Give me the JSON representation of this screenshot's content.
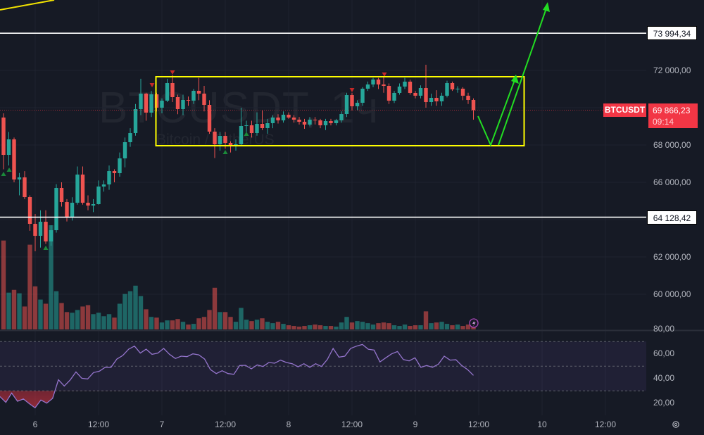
{
  "watermark": {
    "ticker": "BTCUSDT, 1ч",
    "name": "Bitcoin / TetherUS"
  },
  "price_label": {
    "symbol": "BTCUSDT",
    "price": "69 866,23",
    "countdown": "09:14"
  },
  "levels": [
    {
      "price": 73994.34,
      "label": "73 994,34"
    },
    {
      "price": 64128.42,
      "label": "64 128,42"
    }
  ],
  "colors": {
    "background": "#161a25",
    "up": "#26a69a",
    "down": "#ef5350",
    "rsi_line": "#9575cd",
    "drawing_box": "#ffff00",
    "drawing_arrows": "#22dd22",
    "level_lines": "#ffffff",
    "last_price": "#f23645"
  },
  "icons": {
    "alert": "lightning-icon",
    "settings": "gear-icon"
  },
  "chart_data": [
    {
      "type": "candlestick",
      "symbol": "BTCUSDT",
      "interval": "1h",
      "y_axis": {
        "ticks": [
          72000,
          68000,
          66000,
          62000,
          60000
        ],
        "tick_labels": [
          "72 000,00",
          "68 000,00",
          "66 000,00",
          "62 000,00",
          "60 000,00"
        ]
      },
      "x_axis": {
        "tick_labels": [
          "6",
          "12:00",
          "7",
          "12:00",
          "8",
          "12:00",
          "9",
          "12:00",
          "10",
          "12:00"
        ]
      },
      "grid": true,
      "ohlc": [
        [
          69472,
          69700,
          66700,
          67471
        ],
        [
          67471,
          68700,
          66900,
          68302
        ],
        [
          68302,
          68400,
          66000,
          66151
        ],
        [
          66151,
          66500,
          65300,
          66264
        ],
        [
          66264,
          66600,
          65100,
          65207
        ],
        [
          65207,
          65300,
          63400,
          63773
        ],
        [
          63773,
          64300,
          62300,
          63131
        ],
        [
          63131,
          64500,
          62500,
          63886
        ],
        [
          63886,
          64500,
          62700,
          62829
        ],
        [
          62829,
          63700,
          62600,
          63433
        ],
        [
          63433,
          65900,
          63300,
          65698
        ],
        [
          65698,
          66000,
          64700,
          64943
        ],
        [
          64943,
          65100,
          63900,
          64150
        ],
        [
          64150,
          65200,
          63950,
          64905
        ],
        [
          64905,
          66850,
          64800,
          66415
        ],
        [
          66415,
          66850,
          64800,
          64905
        ],
        [
          64905,
          65300,
          64500,
          64754
        ],
        [
          64754,
          65100,
          64400,
          64830
        ],
        [
          64830,
          66100,
          64800,
          65773
        ],
        [
          65773,
          66100,
          65500,
          65886
        ],
        [
          65886,
          66900,
          65600,
          66603
        ],
        [
          66603,
          66700,
          66000,
          66490
        ],
        [
          66490,
          67600,
          66300,
          67283
        ],
        [
          67283,
          68400,
          66800,
          68151
        ],
        [
          68151,
          68900,
          67900,
          68641
        ],
        [
          68641,
          70200,
          68500,
          69925
        ],
        [
          69925,
          71550,
          69600,
          70754
        ],
        [
          70754,
          70800,
          69300,
          69736
        ],
        [
          69736,
          70900,
          69500,
          70717
        ],
        [
          70717,
          70800,
          69800,
          70000
        ],
        [
          70000,
          70500,
          69700,
          70377
        ],
        [
          70377,
          71550,
          70300,
          71321
        ],
        [
          71321,
          71750,
          70300,
          70566
        ],
        [
          70566,
          70700,
          69650,
          69925
        ],
        [
          69925,
          70700,
          69600,
          70415
        ],
        [
          70415,
          70600,
          70100,
          70377
        ],
        [
          70377,
          71000,
          70200,
          70906
        ],
        [
          70906,
          71600,
          70400,
          70755
        ],
        [
          70755,
          71170,
          69800,
          70151
        ],
        [
          70151,
          70400,
          68600,
          68717
        ],
        [
          68717,
          68900,
          67300,
          68038
        ],
        [
          68038,
          68700,
          67700,
          68490
        ],
        [
          68490,
          68700,
          67800,
          68113
        ],
        [
          68113,
          68200,
          67600,
          67962
        ],
        [
          67962,
          68300,
          67700,
          68038
        ],
        [
          68038,
          70000,
          67950,
          69019
        ],
        [
          69019,
          69300,
          68700,
          69056
        ],
        [
          69056,
          69300,
          68400,
          68641
        ],
        [
          68641,
          69750,
          68500,
          69132
        ],
        [
          69132,
          69850,
          68800,
          68906
        ],
        [
          68906,
          69400,
          68600,
          69170
        ],
        [
          69170,
          69600,
          68900,
          69472
        ],
        [
          69472,
          69650,
          69150,
          69321
        ],
        [
          69321,
          69800,
          69200,
          69623
        ],
        [
          69623,
          69750,
          69400,
          69472
        ],
        [
          69472,
          69600,
          69200,
          69358
        ],
        [
          69358,
          69500,
          69100,
          69245
        ],
        [
          69245,
          69400,
          68870,
          69094
        ],
        [
          69094,
          69500,
          69000,
          69358
        ],
        [
          69358,
          69500,
          69100,
          69321
        ],
        [
          69321,
          69400,
          68900,
          69056
        ],
        [
          69056,
          69400,
          68800,
          69283
        ],
        [
          69283,
          69400,
          69050,
          69170
        ],
        [
          69170,
          69400,
          69050,
          69321
        ],
        [
          69321,
          69800,
          69200,
          69660
        ],
        [
          69660,
          70800,
          69500,
          70679
        ],
        [
          70679,
          70800,
          69850,
          70075
        ],
        [
          70075,
          70400,
          69850,
          70264
        ],
        [
          70264,
          71100,
          70100,
          71019
        ],
        [
          71019,
          71400,
          70900,
          71245
        ],
        [
          71245,
          71600,
          71100,
          71510
        ],
        [
          71510,
          71600,
          71000,
          71245
        ],
        [
          71245,
          71700,
          70800,
          71170
        ],
        [
          71170,
          71300,
          70200,
          70377
        ],
        [
          70377,
          70900,
          70250,
          70793
        ],
        [
          70793,
          71300,
          70700,
          71132
        ],
        [
          71132,
          71600,
          71000,
          71396
        ],
        [
          71396,
          71500,
          70700,
          70793
        ],
        [
          70793,
          70900,
          70500,
          70642
        ],
        [
          70642,
          71200,
          70500,
          71057
        ],
        [
          71057,
          72300,
          70000,
          70302
        ],
        [
          70302,
          70750,
          70100,
          70528
        ],
        [
          70528,
          70940,
          70100,
          70340
        ],
        [
          70340,
          70800,
          70100,
          70642
        ],
        [
          70642,
          71450,
          70550,
          71321
        ],
        [
          71321,
          71400,
          70900,
          70981
        ],
        [
          70981,
          71150,
          70800,
          71019
        ],
        [
          71019,
          71100,
          70400,
          70642
        ],
        [
          70642,
          70800,
          70200,
          70415
        ],
        [
          70415,
          70500,
          69358,
          69866
        ]
      ],
      "volume_relative": [
        128,
        53,
        57,
        52,
        33,
        122,
        62,
        43,
        37,
        150,
        55,
        38,
        25,
        24,
        28,
        33,
        35,
        22,
        24,
        19,
        22,
        17,
        37,
        51,
        55,
        63,
        48,
        29,
        18,
        17,
        10,
        13,
        13,
        15,
        11,
        7,
        8,
        16,
        18,
        28,
        60,
        25,
        25,
        18,
        11,
        31,
        14,
        12,
        14,
        16,
        11,
        9,
        11,
        8,
        6,
        5,
        4,
        5,
        6,
        7,
        6,
        5,
        5,
        4,
        10,
        18,
        10,
        12,
        11,
        9,
        7,
        9,
        10,
        9,
        6,
        5,
        7,
        5,
        6,
        6,
        26,
        9,
        10,
        11,
        8,
        6,
        7,
        5,
        7,
        7
      ],
      "signals": {
        "buy_markers": 5,
        "sell_markers": 4
      },
      "horizontal_levels": [
        73994.34,
        64128.42
      ],
      "last_price": 69866.23
    },
    {
      "type": "line",
      "indicator": "RSI",
      "y_axis": {
        "ticks": [
          80,
          60,
          40,
          20
        ],
        "tick_labels": [
          "80,00",
          "60,00",
          "40,00",
          "20,00"
        ]
      },
      "band": [
        30,
        70
      ],
      "midline": 50,
      "values": [
        25.3,
        20.6,
        28.2,
        21.5,
        23.4,
        19.6,
        16.2,
        22.5,
        20.0,
        23.8,
        39.0,
        33.9,
        38.7,
        45.3,
        40.2,
        39.6,
        44.8,
        45.9,
        49.1,
        49.1,
        55.8,
        58.7,
        63.8,
        66.3,
        60.6,
        63.8,
        59.6,
        60.6,
        64.4,
        59.6,
        56.2,
        58.1,
        57.7,
        60.0,
        59.2,
        55.8,
        47.2,
        44.0,
        46.3,
        44.0,
        43.4,
        50.5,
        50.7,
        47.8,
        51.0,
        49.7,
        53.0,
        52.4,
        54.9,
        53.0,
        52.0,
        49.5,
        52.0,
        49.1,
        52.0,
        49.7,
        55.4,
        64.4,
        57.3,
        58.1,
        64.4,
        66.3,
        67.6,
        63.8,
        63.0,
        53.5,
        56.8,
        60.0,
        61.9,
        55.4,
        54.3,
        56.8,
        49.1,
        50.5,
        49.1,
        51.6,
        58.1,
        54.9,
        55.2,
        50.5,
        47.2,
        42.5
      ]
    }
  ]
}
